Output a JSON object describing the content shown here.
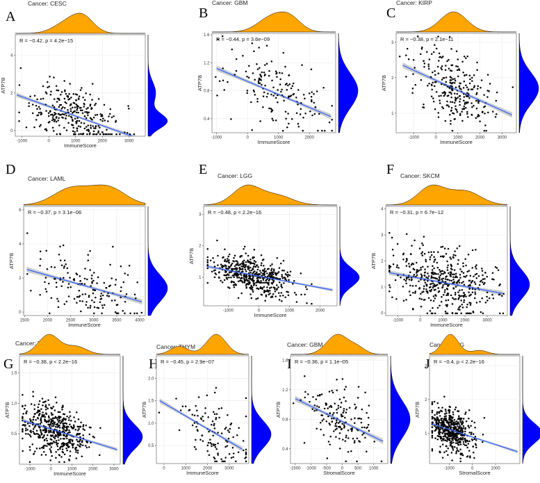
{
  "chart_data": [
    {
      "type": "scatter",
      "panel": "A",
      "title": "Cancer: CESC",
      "xlabel": "ImmuneScore",
      "ylabel": "ATP7B",
      "stat": "R = −0.42, p = 4.2e−15",
      "xlim": [
        -1250,
        3600
      ],
      "ylim": [
        -0.3,
        5.1
      ],
      "xticks": [
        "-1000",
        "0",
        "1000",
        "2000",
        "3000"
      ],
      "xtickvals": [
        -1000,
        0,
        1000,
        2000,
        3000
      ],
      "yticks": [
        "0",
        "2",
        "4"
      ],
      "ytickvals": [
        0,
        2,
        4
      ],
      "fit": [
        [
          -1200,
          1.9
        ],
        [
          3400,
          -0.45
        ]
      ],
      "n": 300,
      "seed": 11,
      "xdist": [
        1000,
        850
      ],
      "noise": 0.75,
      "xdens": [
        [
          0.2,
          700,
          500
        ],
        [
          0.25,
          1300,
          400
        ]
      ],
      "ydens": [
        [
          1,
          0.5,
          0.4
        ],
        [
          0.4,
          2.0,
          0.6
        ]
      ]
    },
    {
      "type": "scatter",
      "panel": "B",
      "title": "Cancer: GBM",
      "xlabel": "ImmuneScore",
      "ylabel": "ATP7B",
      "stat": "R = −0.44, p = 3.6e−09",
      "xlim": [
        -1150,
        2850
      ],
      "ylim": [
        0.2,
        1.62
      ],
      "xticks": [
        "-1000",
        "0",
        "1000",
        "2000"
      ],
      "xtickvals": [
        -1000,
        0,
        1000,
        2000
      ],
      "yticks": [
        "0.4",
        "0.8",
        "1.2",
        "1.6"
      ],
      "ytickvals": [
        0.4,
        0.8,
        1.2,
        1.6
      ],
      "fit": [
        [
          -1000,
          1.12
        ],
        [
          2700,
          0.43
        ]
      ],
      "n": 160,
      "seed": 23,
      "xdist": [
        1000,
        800
      ],
      "noise": 0.24,
      "xdens": [
        [
          0.2,
          800,
          450
        ],
        [
          0.15,
          1400,
          350
        ]
      ],
      "ydens": [
        [
          1,
          0.8,
          0.25
        ]
      ]
    },
    {
      "type": "scatter",
      "panel": "C",
      "title": "Cancer: KIRP",
      "xlabel": "ImmuneScore",
      "ylabel": "ATP7B",
      "stat": "R = −0.38, p = 2.1e−11",
      "xlim": [
        -1800,
        3650
      ],
      "ylim": [
        0.45,
        3.25
      ],
      "xticks": [
        "-1000",
        "0",
        "1000",
        "2000",
        "3000"
      ],
      "xtickvals": [
        -1000,
        0,
        1000,
        2000,
        3000
      ],
      "yticks": [
        "1",
        "2",
        "3"
      ],
      "ytickvals": [
        1,
        2,
        3
      ],
      "fit": [
        [
          -1500,
          2.35
        ],
        [
          3450,
          0.95
        ]
      ],
      "n": 280,
      "seed": 37,
      "xdist": [
        900,
        900
      ],
      "noise": 0.5,
      "xdens": [
        [
          0.2,
          800,
          600
        ]
      ],
      "ydens": [
        [
          1,
          1.7,
          0.45
        ]
      ]
    },
    {
      "type": "scatter",
      "panel": "D",
      "title": "Cancer: LAML",
      "xlabel": "ImmuneScore",
      "ylabel": "ATP7B",
      "stat": "R = −0.37, p = 3.1e−06",
      "xlim": [
        1480,
        4120
      ],
      "ylim": [
        -0.2,
        6.2
      ],
      "xticks": [
        "1500",
        "2000",
        "2500",
        "3000",
        "3500",
        "4000"
      ],
      "xtickvals": [
        1500,
        2000,
        2500,
        3000,
        3500,
        4000
      ],
      "yticks": [
        "0",
        "2",
        "4",
        "6"
      ],
      "ytickvals": [
        0,
        2,
        4,
        6
      ],
      "fit": [
        [
          1550,
          2.5
        ],
        [
          4050,
          0.6
        ]
      ],
      "n": 160,
      "seed": 41,
      "xdist": [
        2800,
        550
      ],
      "noise": 1.0,
      "xdens": [
        [
          0.2,
          2500,
          380
        ],
        [
          0.22,
          3300,
          380
        ]
      ],
      "ydens": [
        [
          1,
          1.4,
          0.8
        ]
      ]
    },
    {
      "type": "scatter",
      "panel": "E",
      "title": "Cancer: LGG",
      "xlabel": "ImmuneScore",
      "ylabel": "ATP7B",
      "stat": "R = −0.48, p < 2.2e−16",
      "xlim": [
        -1800,
        2550
      ],
      "ylim": [
        0.1,
        3.25
      ],
      "xticks": [
        "-1000",
        "0",
        "1000",
        "2000"
      ],
      "xtickvals": [
        -1000,
        0,
        1000,
        2000
      ],
      "yticks": [
        "1",
        "2",
        "3"
      ],
      "ytickvals": [
        1,
        2,
        3
      ],
      "fit": [
        [
          -1700,
          1.35
        ],
        [
          2400,
          0.6
        ]
      ],
      "n": 520,
      "seed": 53,
      "xdist": [
        -200,
        700
      ],
      "noise": 0.3,
      "xdens": [
        [
          0.2,
          -400,
          450
        ],
        [
          0.1,
          600,
          500
        ]
      ],
      "ydens": [
        [
          1,
          1.0,
          0.3
        ]
      ]
    },
    {
      "type": "scatter",
      "panel": "F",
      "title": "Cancer: SKCM",
      "xlabel": "ImmuneScore",
      "ylabel": "ATP7B",
      "stat": "R = −0.31, p = 6.7e−12",
      "xlim": [
        -1550,
        3900
      ],
      "ylim": [
        -0.1,
        4.1
      ],
      "xticks": [
        "-1000",
        "0",
        "1000",
        "2000",
        "3000"
      ],
      "xtickvals": [
        -1000,
        0,
        1000,
        2000,
        3000
      ],
      "yticks": [
        "0",
        "1",
        "2",
        "3",
        "4"
      ],
      "ytickvals": [
        0,
        1,
        2,
        3,
        4
      ],
      "fit": [
        [
          -1400,
          1.55
        ],
        [
          3700,
          0.75
        ]
      ],
      "n": 470,
      "seed": 67,
      "xdist": [
        1000,
        1100
      ],
      "noise": 0.6,
      "xdens": [
        [
          0.2,
          500,
          600
        ],
        [
          0.15,
          2000,
          700
        ]
      ],
      "ydens": [
        [
          1,
          1.1,
          0.55
        ]
      ]
    },
    {
      "type": "scatter",
      "panel": "G",
      "title": "Cancer: THCA",
      "xlabel": "ImmuneScore",
      "ylabel": "ATP7B",
      "stat": "R = −0.38, p < 2.2e−16",
      "xlim": [
        -1500,
        3300
      ],
      "ylim": [
        0,
        1.78
      ],
      "xticks": [
        "-1000",
        "0",
        "1000",
        "2000",
        "3000"
      ],
      "xtickvals": [
        -1000,
        0,
        1000,
        2000,
        3000
      ],
      "yticks": [
        "0.5",
        "1.0",
        "1.5"
      ],
      "ytickvals": [
        0.5,
        1.0,
        1.5
      ],
      "fit": [
        [
          -1350,
          0.72
        ],
        [
          3150,
          0.24
        ]
      ],
      "n": 500,
      "seed": 79,
      "xdist": [
        200,
        800
      ],
      "noise": 0.2,
      "xdens": [
        [
          0.2,
          -100,
          500
        ],
        [
          0.08,
          1200,
          500
        ]
      ],
      "ydens": [
        [
          1,
          0.45,
          0.2
        ]
      ]
    },
    {
      "type": "scatter",
      "panel": "H",
      "title": "Cancer: THYM",
      "xlabel": "ImmuneScore",
      "ylabel": "ATP7B",
      "stat": "R = −0.45, p = 2.9e−07",
      "xlim": [
        -350,
        3900
      ],
      "ylim": [
        0.1,
        2.5
      ],
      "xticks": [
        "0",
        "1000",
        "2000",
        "3000"
      ],
      "xtickvals": [
        0,
        1000,
        2000,
        3000
      ],
      "yticks": [
        "0.5",
        "1.0",
        "1.5",
        "2.0"
      ],
      "ytickvals": [
        0.5,
        1.0,
        1.5,
        2.0
      ],
      "fit": [
        [
          -200,
          1.5
        ],
        [
          3600,
          0.42
        ]
      ],
      "n": 120,
      "seed": 83,
      "xdist": [
        2400,
        800
      ],
      "noise": 0.35,
      "xdens": [
        [
          0.08,
          700,
          400
        ],
        [
          0.2,
          2400,
          450
        ]
      ],
      "ydens": [
        [
          1,
          0.75,
          0.3
        ]
      ]
    },
    {
      "type": "scatter",
      "panel": "I",
      "title": "Cancer: GBM",
      "xlabel": "StromalScore",
      "ylabel": "ATP7B",
      "stat": "R = −0.36, p = 1.1e−05",
      "xlim": [
        -1650,
        1450
      ],
      "ylim": [
        0.2,
        1.66
      ],
      "xticks": [
        "-1500",
        "-1000",
        "-500",
        "0",
        "500",
        "1000"
      ],
      "xtickvals": [
        -1500,
        -1000,
        -500,
        0,
        500,
        1000
      ],
      "yticks": [
        "0.4",
        "0.8",
        "1.2",
        "1.6"
      ],
      "ytickvals": [
        0.4,
        0.8,
        1.2,
        1.6
      ],
      "fit": [
        [
          -1500,
          1.08
        ],
        [
          1300,
          0.5
        ]
      ],
      "n": 160,
      "seed": 97,
      "xdist": [
        -100,
        550
      ],
      "noise": 0.24,
      "xdens": [
        [
          0.2,
          -150,
          350
        ],
        [
          0.06,
          500,
          250
        ]
      ],
      "ydens": [
        [
          1,
          0.8,
          0.25
        ]
      ]
    },
    {
      "type": "scatter",
      "panel": "J",
      "title": "Cancer: LGG",
      "xlabel": "StromalScore",
      "ylabel": "ATP7B",
      "stat": "R = −0.4, p < 2.2e−16",
      "xlim": [
        -1850,
        2050
      ],
      "ylim": [
        0.1,
        3.3
      ],
      "xticks": [
        "-1000",
        "0",
        "1000"
      ],
      "xtickvals": [
        -1000,
        0,
        1000
      ],
      "yticks": [
        "1",
        "2",
        "3"
      ],
      "ytickvals": [
        1,
        2,
        3
      ],
      "fit": [
        [
          -1750,
          1.28
        ],
        [
          1950,
          0.45
        ]
      ],
      "n": 520,
      "seed": 101,
      "xdist": [
        -900,
        450
      ],
      "noise": 0.3,
      "xdens": [
        [
          0.2,
          -950,
          350
        ],
        [
          0.04,
          300,
          350
        ]
      ],
      "ydens": [
        [
          1,
          1.0,
          0.3
        ]
      ]
    }
  ],
  "colors": {
    "density_top": "#FFA500",
    "density_right": "#0000FF",
    "fit_line": "#3366FF",
    "band": "#BDBDBD",
    "points": "#000000"
  }
}
